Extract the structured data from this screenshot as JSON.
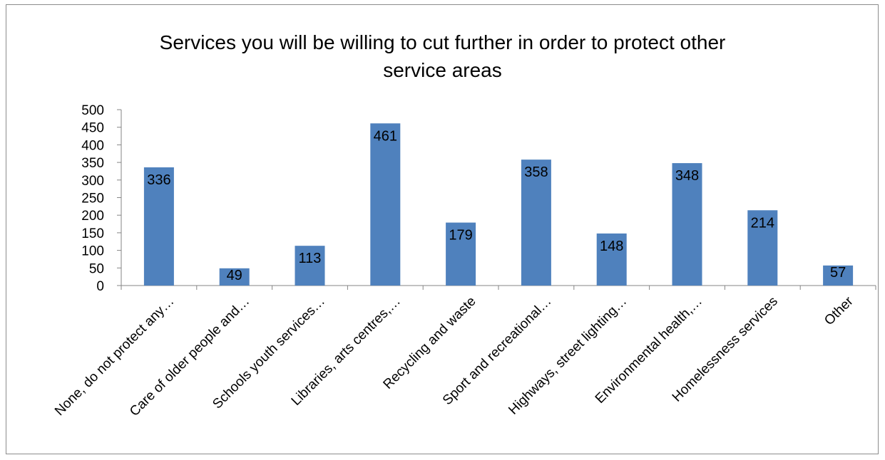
{
  "chart_data": {
    "type": "bar",
    "title_line1": "Services you will be willing to cut further in order to protect other",
    "title_line2": "service areas",
    "categories": [
      "None, do not protect any…",
      "Care of older people and…",
      "Schools youth services…",
      "Libraries, arts centres,…",
      "Recycling and waste",
      "Sport and recreational…",
      "Highways, street lighting…",
      "Environmental health,…",
      "Homelessness services",
      "Other"
    ],
    "values": [
      336,
      49,
      113,
      461,
      179,
      358,
      148,
      348,
      214,
      57
    ],
    "yticks": [
      "0",
      "50",
      "100",
      "150",
      "200",
      "250",
      "300",
      "350",
      "400",
      "450",
      "500"
    ],
    "ylim": [
      0,
      500
    ],
    "bar_color": "#4f81bd",
    "grid": false,
    "legend": "none"
  }
}
